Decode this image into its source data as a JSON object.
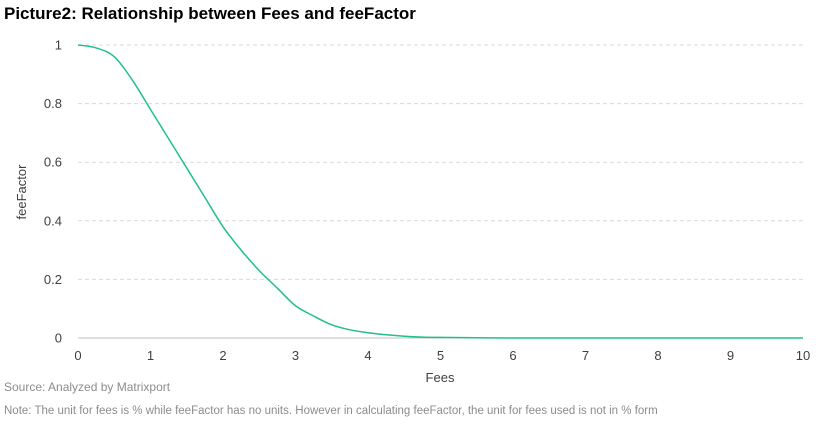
{
  "chart_data": {
    "type": "line",
    "title": "Picture2: Relationship between Fees and feeFactor",
    "xlabel": "Fees",
    "ylabel": "feeFactor",
    "xlim": [
      0,
      10
    ],
    "ylim": [
      0,
      1
    ],
    "x_ticks": [
      "0",
      "1",
      "2",
      "3",
      "4",
      "5",
      "6",
      "7",
      "8",
      "9",
      "10"
    ],
    "y_ticks": [
      "0",
      "0.2",
      "0.4",
      "0.6",
      "0.8",
      "1"
    ],
    "grid": "horizontal dashed",
    "legend": "none",
    "series": [
      {
        "color": "#1fbf8f",
        "x": [
          0,
          0.25,
          0.5,
          0.75,
          1,
          1.25,
          1.5,
          1.75,
          2,
          2.25,
          2.5,
          2.75,
          3,
          3.25,
          3.5,
          3.75,
          4,
          4.25,
          4.5,
          4.75,
          5,
          5.5,
          6,
          7,
          8,
          9,
          10
        ],
        "y": [
          1,
          0.99,
          0.96,
          0.88,
          0.78,
          0.68,
          0.58,
          0.48,
          0.38,
          0.3,
          0.23,
          0.17,
          0.11,
          0.075,
          0.045,
          0.028,
          0.018,
          0.011,
          0.006,
          0.003,
          0.002,
          0.001,
          0,
          0,
          0,
          0,
          0
        ]
      }
    ]
  },
  "source": "Source: Analyzed by Matrixport",
  "note": "Note: The unit for fees is % while feeFactor has no units. However in calculating feeFactor, the unit for fees used is not in % form"
}
